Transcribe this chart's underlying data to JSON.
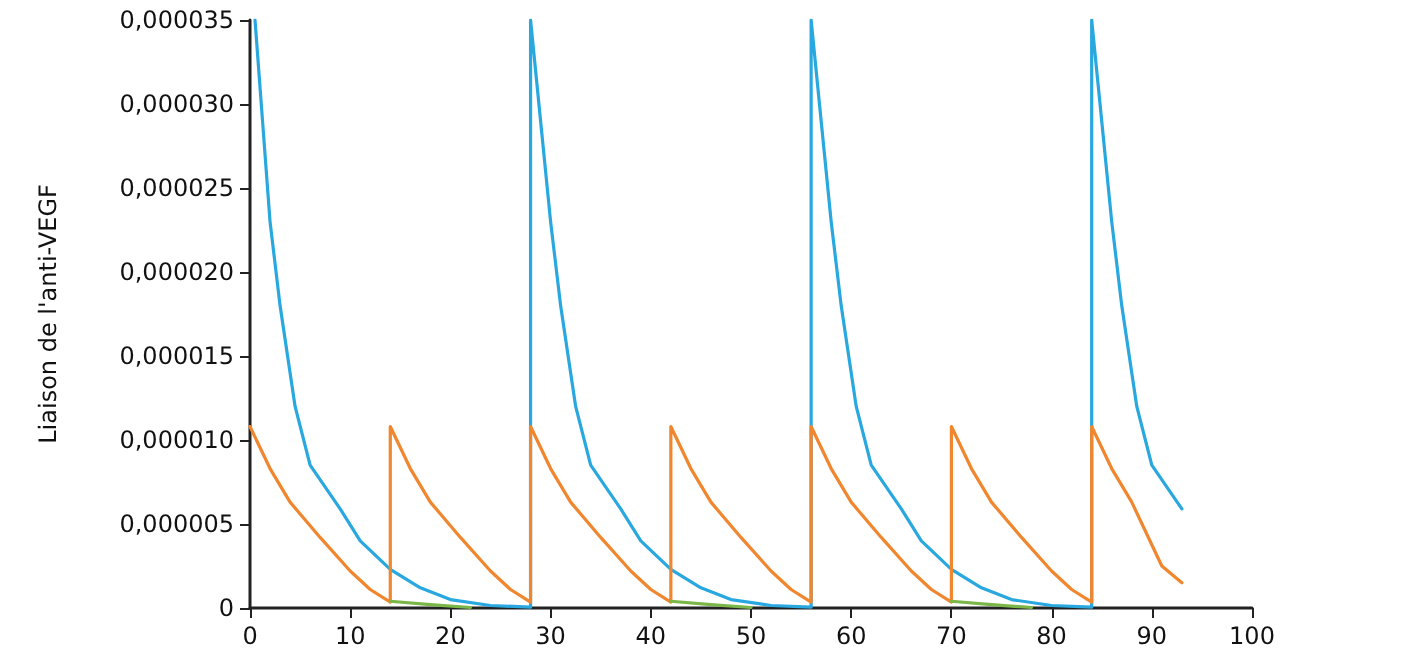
{
  "chart_data": {
    "type": "line",
    "ylabel": "Liaison de l'anti-VEGF",
    "xlim": [
      0,
      100
    ],
    "xticks": [
      0,
      10,
      20,
      30,
      40,
      50,
      60,
      70,
      80,
      90,
      100
    ],
    "ylim": [
      0,
      3.5e-05
    ],
    "yticks": [
      {
        "value": 0,
        "label": "0"
      },
      {
        "value": 5e-06,
        "label": "0,000005"
      },
      {
        "value": 1e-05,
        "label": "0,000010"
      },
      {
        "value": 1.5e-05,
        "label": "0,000015"
      },
      {
        "value": 2e-05,
        "label": "0,000020"
      },
      {
        "value": 2.5e-05,
        "label": "0,000025"
      },
      {
        "value": 3e-05,
        "label": "0,000030"
      },
      {
        "value": 3.5e-05,
        "label": "0,000035"
      }
    ],
    "grid": false,
    "marker": "none",
    "line_style": "solid",
    "series": [
      {
        "color": "#29a8e0",
        "x": [
          0.5,
          2,
          3,
          4.5,
          6,
          9,
          11,
          14,
          17,
          20,
          24,
          28,
          28,
          30,
          31,
          32.5,
          34,
          37,
          39,
          42,
          45,
          48,
          52,
          56,
          56,
          58,
          59,
          60.5,
          62,
          65,
          67,
          70,
          73,
          76,
          80,
          84,
          84,
          86,
          87,
          88.5,
          90,
          93
        ],
        "values": [
          3.5e-05,
          2.3e-05,
          1.8e-05,
          1.2e-05,
          8.5e-06,
          5.9e-06,
          4e-06,
          2.3e-06,
          1.2e-06,
          5e-07,
          1.5e-07,
          5e-08,
          3.5e-05,
          2.3e-05,
          1.8e-05,
          1.2e-05,
          8.5e-06,
          5.9e-06,
          4e-06,
          2.3e-06,
          1.2e-06,
          5e-07,
          1.5e-07,
          5e-08,
          3.5e-05,
          2.3e-05,
          1.8e-05,
          1.2e-05,
          8.5e-06,
          5.9e-06,
          4e-06,
          2.3e-06,
          1.2e-06,
          5e-07,
          1.5e-07,
          5e-08,
          3.5e-05,
          2.3e-05,
          1.8e-05,
          1.2e-05,
          8.5e-06,
          5.9e-06
        ]
      },
      {
        "color": "#f0862e",
        "x": [
          0,
          2,
          4,
          7,
          10,
          12,
          14,
          14,
          16,
          18,
          21,
          24,
          26,
          28,
          28,
          30,
          32,
          35,
          38,
          40,
          42,
          42,
          44,
          46,
          49,
          52,
          54,
          56,
          56,
          58,
          60,
          63,
          66,
          68,
          70,
          70,
          72,
          74,
          77,
          80,
          82,
          84,
          84,
          86,
          88,
          91,
          93
        ],
        "values": [
          1.08e-05,
          8.3e-06,
          6.3e-06,
          4.2e-06,
          2.2e-06,
          1.1e-06,
          3.5e-07,
          1.08e-05,
          8.3e-06,
          6.3e-06,
          4.2e-06,
          2.2e-06,
          1.1e-06,
          3.5e-07,
          1.08e-05,
          8.3e-06,
          6.3e-06,
          4.2e-06,
          2.2e-06,
          1.1e-06,
          3.5e-07,
          1.08e-05,
          8.3e-06,
          6.3e-06,
          4.2e-06,
          2.2e-06,
          1.1e-06,
          3.5e-07,
          1.08e-05,
          8.3e-06,
          6.3e-06,
          4.2e-06,
          2.2e-06,
          1.1e-06,
          3.5e-07,
          1.08e-05,
          8.3e-06,
          6.3e-06,
          4.2e-06,
          2.2e-06,
          1.1e-06,
          3.5e-07,
          1.08e-05,
          8.3e-06,
          6.3e-06,
          2.5e-06,
          1.5e-06
        ]
      },
      {
        "color": "#7ab648",
        "x": [
          14,
          18,
          22,
          23,
          42,
          46,
          50,
          51,
          70,
          74,
          78
        ],
        "values": [
          4e-07,
          2e-07,
          3e-08,
          null,
          4e-07,
          2e-07,
          3e-08,
          null,
          4e-07,
          2e-07,
          3e-08
        ]
      }
    ]
  }
}
